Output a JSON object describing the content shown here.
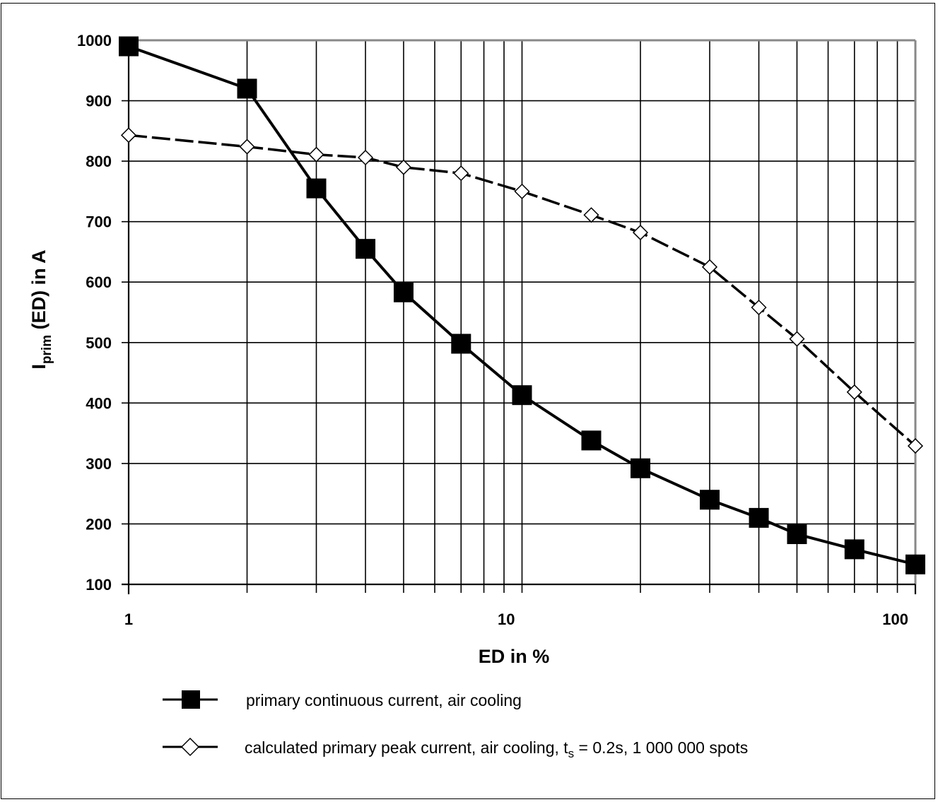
{
  "chart_data": {
    "type": "line",
    "xscale": "log",
    "xlim": [
      1,
      100
    ],
    "ylim": [
      100,
      1000
    ],
    "grid": true,
    "xlabel": "ED in %",
    "ylabel": {
      "main": "I",
      "sub": "prim",
      "rest": " (ED) in A"
    },
    "xticks": [
      {
        "value": 1,
        "label": "1"
      },
      {
        "value": 10,
        "label": "10"
      },
      {
        "value": 100,
        "label": "100"
      }
    ],
    "yticks": [
      {
        "value": 1000,
        "label": "1000"
      },
      {
        "value": 900,
        "label": "900"
      },
      {
        "value": 800,
        "label": "800"
      },
      {
        "value": 700,
        "label": "700"
      },
      {
        "value": 600,
        "label": "600"
      },
      {
        "value": 500,
        "label": "500"
      },
      {
        "value": 400,
        "label": "400"
      },
      {
        "value": 300,
        "label": "300"
      },
      {
        "value": 200,
        "label": "200"
      },
      {
        "value": 100,
        "label": "100"
      }
    ],
    "series": [
      {
        "name": "primary continuous current, air cooling",
        "marker": "square-filled",
        "line": "solid",
        "color": "#000000",
        "x": [
          1,
          2,
          3,
          4,
          5,
          7,
          10,
          15,
          20,
          30,
          40,
          50,
          70,
          100
        ],
        "y": [
          990,
          920,
          755,
          655,
          583,
          498,
          413,
          338,
          292,
          240,
          210,
          183,
          158,
          133
        ]
      },
      {
        "name": "calculated primary peak current, air cooling, ts = 0.2s, 1 000 000 spots",
        "name_parts": {
          "before": "calculated primary peak current, air cooling, t",
          "sub": "s",
          "after": " = 0.2s, 1 000 000 spots"
        },
        "marker": "diamond-open",
        "line": "dashed",
        "color": "#000000",
        "x": [
          1,
          2,
          3,
          4,
          5,
          7,
          10,
          15,
          20,
          30,
          40,
          50,
          70,
          100
        ],
        "y": [
          843,
          824,
          811,
          806,
          790,
          780,
          750,
          711,
          682,
          625,
          558,
          506,
          418,
          329
        ]
      }
    ]
  }
}
